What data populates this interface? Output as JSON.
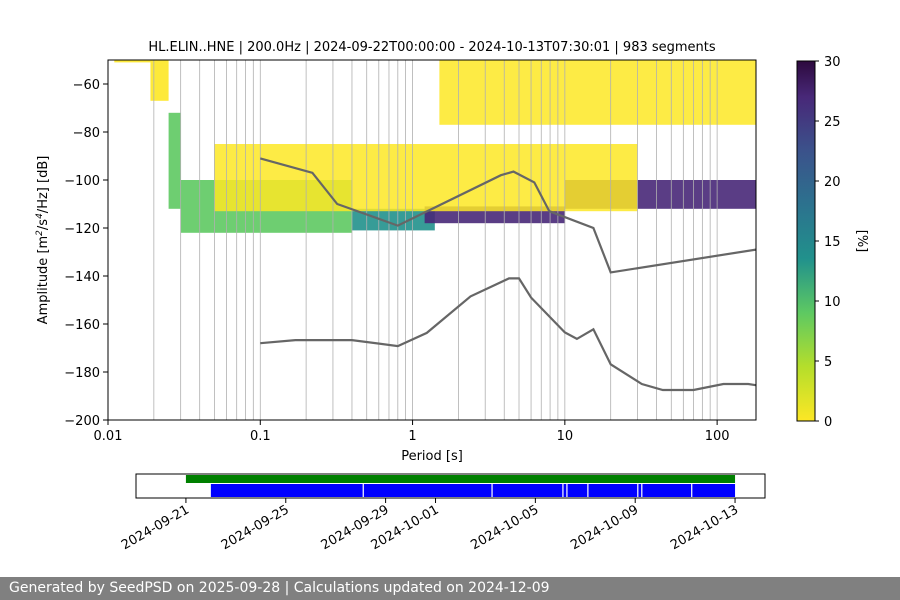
{
  "chart_data": [
    {
      "type": "heatmap",
      "title": "HL.ELIN..HNE | 200.0Hz | 2024-09-22T00:00:00 - 2024-10-13T07:30:01 | 983 segments",
      "xlabel": "Period [s]",
      "ylabel_parts": [
        "Amplitude [m",
        "2",
        "/s",
        "4",
        "/Hz] [dB]"
      ],
      "xscale": "log",
      "xlim": [
        0.01,
        180
      ],
      "ylim": [
        -200,
        -50
      ],
      "xticks": [
        0.01,
        0.1,
        1,
        10,
        100
      ],
      "xtick_labels": [
        "0.01",
        "0.1",
        "1",
        "10",
        "100"
      ],
      "yticks": [
        -60,
        -80,
        -100,
        -120,
        -140,
        -160,
        -180,
        -200
      ],
      "ytick_labels": [
        "−60",
        "−80",
        "−100",
        "−120",
        "−140",
        "−160",
        "−180",
        "−200"
      ],
      "grid": "vertical lines at minor and major period ticks",
      "colorbar": {
        "label": "[%]",
        "range": [
          0,
          30
        ],
        "ticks": [
          0,
          5,
          10,
          15,
          20,
          25,
          30
        ],
        "tick_labels": [
          "0",
          "5",
          "10",
          "15",
          "20",
          "25",
          "30"
        ],
        "colormap": "viridis reversed",
        "colors": [
          "#fde725",
          "#5ec962",
          "#21918c",
          "#3b528b",
          "#440154",
          "#2d0a3e"
        ]
      },
      "noise_models": [
        {
          "points": [
            [
              0.1,
              -91
            ],
            [
              0.22,
              -97
            ],
            [
              0.32,
              -110
            ],
            [
              0.8,
              -119
            ],
            [
              1.0,
              -116
            ],
            [
              3.8,
              -98
            ],
            [
              4.6,
              -96.5
            ],
            [
              6.3,
              -101
            ],
            [
              7.9,
              -113
            ],
            [
              15.4,
              -120
            ],
            [
              20,
              -138.5
            ],
            [
              180,
              -129
            ]
          ]
        },
        {
          "points": [
            [
              0.1,
              -168
            ],
            [
              0.17,
              -166.7
            ],
            [
              0.4,
              -166.7
            ],
            [
              0.8,
              -169.2
            ],
            [
              1.24,
              -163.7
            ],
            [
              2.4,
              -148.5
            ],
            [
              4.3,
              -141
            ],
            [
              5.0,
              -141
            ],
            [
              6.0,
              -149
            ],
            [
              10,
              -163.5
            ],
            [
              12,
              -166.2
            ],
            [
              15.4,
              -162.2
            ],
            [
              20,
              -176.8
            ],
            [
              32,
              -185
            ],
            [
              44,
              -187.5
            ],
            [
              70,
              -187.5
            ],
            [
              110,
              -185
            ],
            [
              160,
              -185
            ],
            [
              180,
              -185.5
            ]
          ]
        }
      ],
      "density_bands": [
        {
          "x_range": [
            0.011,
            0.019
          ],
          "y_range": [
            -51,
            -50
          ],
          "level": 2
        },
        {
          "x_range": [
            0.019,
            0.025
          ],
          "y_range": [
            -67,
            -50
          ],
          "level": 3
        },
        {
          "x_range": [
            0.025,
            0.03
          ],
          "y_range": [
            -112,
            -72
          ],
          "level": 8
        },
        {
          "x_range": [
            0.03,
            0.4
          ],
          "y_range": [
            -122,
            -100
          ],
          "level": 8
        },
        {
          "x_range": [
            0.4,
            1.4
          ],
          "y_range": [
            -121,
            -112
          ],
          "level": 12
        },
        {
          "x_range": [
            1.2,
            10
          ],
          "y_range": [
            -118,
            -111
          ],
          "level": 25
        },
        {
          "x_range": [
            10,
            180
          ],
          "y_range": [
            -112,
            -100
          ],
          "level": 28
        },
        {
          "x_range": [
            0.05,
            30
          ],
          "y_range": [
            -113,
            -85
          ],
          "level": 1
        },
        {
          "x_range": [
            1.5,
            180
          ],
          "y_range": [
            -77,
            -50
          ],
          "level": 1
        }
      ]
    },
    {
      "type": "timeline",
      "xtick_labels": [
        "2024-09-21",
        "2024-09-25",
        "2024-09-29",
        "2024-10-01",
        "2024-10-05",
        "2024-10-09",
        "2024-10-13"
      ],
      "series": [
        {
          "color": "#008000",
          "start": "2024-09-21",
          "end": "2024-10-13"
        },
        {
          "color": "#0000ff",
          "start": "2024-09-22",
          "end": "2024-10-13"
        }
      ],
      "gaps": [
        "2024-09-28",
        "2024-10-03",
        "2024-10-06",
        "2024-10-06",
        "2024-10-07",
        "2024-10-09",
        "2024-10-09",
        "2024-10-11"
      ]
    }
  ],
  "footer": {
    "text": "Generated by SeedPSD on 2025-09-28 | Calculations updated on 2024-12-09"
  }
}
